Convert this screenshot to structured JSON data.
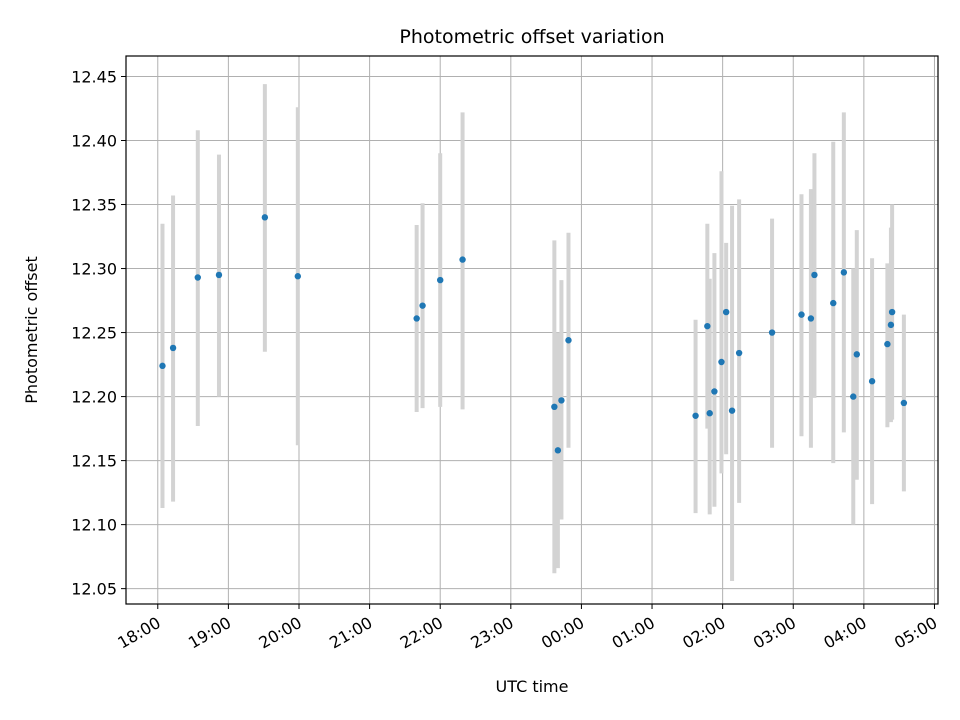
{
  "chart_data": {
    "type": "scatter",
    "title": "Photometric offset variation",
    "xlabel": "UTC time",
    "ylabel": "Photometric offset",
    "grid": true,
    "x_tick_labels": [
      "18:00",
      "19:00",
      "20:00",
      "21:00",
      "22:00",
      "23:00",
      "00:00",
      "01:00",
      "02:00",
      "03:00",
      "04:00",
      "05:00"
    ],
    "y_tick_labels": [
      "12.05",
      "12.10",
      "12.15",
      "12.20",
      "12.25",
      "12.30",
      "12.35",
      "12.40",
      "12.45"
    ],
    "y_ticks": [
      12.05,
      12.1,
      12.15,
      12.2,
      12.25,
      12.3,
      12.35,
      12.4,
      12.45
    ],
    "xlim": [
      "17:33",
      "05:03"
    ],
    "ylim": [
      12.038,
      12.466
    ],
    "point_color": "#1f77b4",
    "errorbar_color": "#d3d3d3",
    "series": [
      {
        "x": [
          "18:04",
          "18:13",
          "18:34",
          "18:52",
          "19:31",
          "19:59",
          "21:40",
          "21:45",
          "22:00",
          "22:19",
          "23:37",
          "23:40",
          "23:43",
          "23:49",
          "01:37",
          "01:47",
          "01:49",
          "01:53",
          "01:59",
          "02:03",
          "02:08",
          "02:14",
          "02:42",
          "03:07",
          "03:15",
          "03:18",
          "03:34",
          "03:43",
          "03:51",
          "03:54",
          "04:07",
          "04:20",
          "04:23",
          "04:24",
          "04:34"
        ],
        "y": [
          12.224,
          12.238,
          12.293,
          12.295,
          12.34,
          12.294,
          12.261,
          12.271,
          12.291,
          12.307,
          12.192,
          12.158,
          12.197,
          12.244,
          12.185,
          12.255,
          12.187,
          12.204,
          12.227,
          12.266,
          12.189,
          12.234,
          12.25,
          12.264,
          12.261,
          12.295,
          12.273,
          12.297,
          12.2,
          12.233,
          12.212,
          12.241,
          12.256,
          12.266,
          12.195
        ],
        "y_err_low": [
          12.113,
          12.118,
          12.177,
          12.2,
          12.235,
          12.162,
          12.188,
          12.191,
          12.192,
          12.19,
          12.062,
          12.066,
          12.104,
          12.16,
          12.109,
          12.175,
          12.108,
          12.114,
          12.14,
          12.155,
          12.056,
          12.117,
          12.16,
          12.169,
          12.16,
          12.199,
          12.148,
          12.172,
          12.1,
          12.135,
          12.116,
          12.176,
          12.18,
          12.182,
          12.126
        ],
        "y_err_high": [
          12.335,
          12.357,
          12.408,
          12.389,
          12.444,
          12.426,
          12.334,
          12.351,
          12.39,
          12.422,
          12.322,
          12.25,
          12.291,
          12.328,
          12.26,
          12.335,
          12.292,
          12.312,
          12.376,
          12.32,
          12.349,
          12.354,
          12.339,
          12.358,
          12.362,
          12.39,
          12.399,
          12.422,
          12.3,
          12.33,
          12.308,
          12.304,
          12.332,
          12.35,
          12.264
        ]
      }
    ]
  }
}
